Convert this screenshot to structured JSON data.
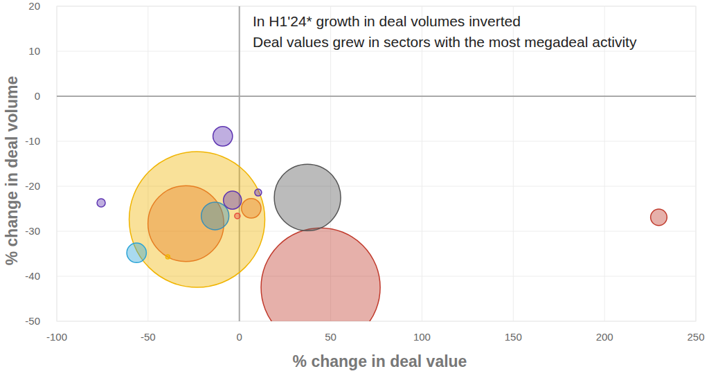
{
  "chart_data": {
    "type": "scatter",
    "title": "In H1'24* growth in deal volumes inverted",
    "subtitle": "Deal values grew in sectors with the most megadeal activity",
    "x_label": "% change in deal value",
    "y_label": "% change in deal volume",
    "x": [
      -23.2,
      44.5,
      -29.3,
      37.3,
      -13.3,
      -56.3,
      -9.1,
      6.5,
      -3.8,
      229.7,
      -75.7,
      10.3,
      -1.1,
      -39.2
    ],
    "values": [
      -27.4,
      -42.5,
      -28.3,
      -22.5,
      -26.6,
      -34.8,
      -8.9,
      -24.9,
      -23.1,
      -26.9,
      -23.7,
      -21.4,
      -26.6,
      -35.7
    ],
    "sizes": [
      96,
      74,
      30,
      23,
      4,
      2,
      2,
      2,
      1.7,
      1.4,
      0.36,
      0.25,
      0.16,
      0.09
    ],
    "colors": [
      "#f0b400",
      "#c0392b",
      "#e67e22",
      "#555555",
      "#3a8fb7",
      "#29a3d6",
      "#5e35b1",
      "#e67e22",
      "#5e35b1",
      "#c0392b",
      "#5e35b1",
      "#5e35b1",
      "#e74c3c",
      "#f0b400"
    ],
    "xlim": [
      -100,
      250
    ],
    "xticks": [
      -100,
      -50,
      0,
      50,
      100,
      150,
      200,
      250
    ],
    "ylim": [
      -50,
      20
    ],
    "yticks": [
      -50,
      -40,
      -30,
      -20,
      -10,
      0,
      10,
      20
    ],
    "grid": true
  }
}
